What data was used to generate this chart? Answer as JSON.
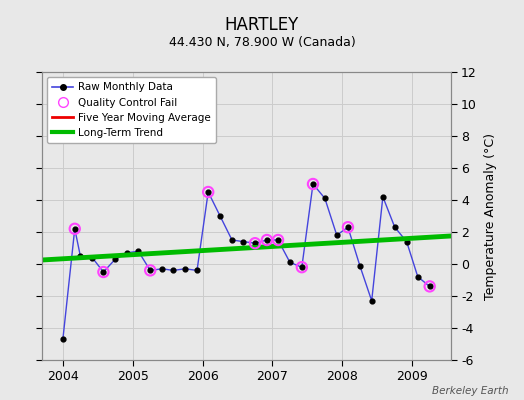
{
  "title": "HARTLEY",
  "subtitle": "44.430 N, 78.900 W (Canada)",
  "attribution": "Berkeley Earth",
  "ylabel": "Temperature Anomaly (°C)",
  "ylim": [
    -6,
    12
  ],
  "yticks": [
    -6,
    -4,
    -2,
    0,
    2,
    4,
    6,
    8,
    10,
    12
  ],
  "xlim": [
    2003.7,
    2009.55
  ],
  "xticks": [
    2004,
    2005,
    2006,
    2007,
    2008,
    2009
  ],
  "bg_color": "#e8e8e8",
  "raw_x": [
    2004.0,
    2004.17,
    2004.25,
    2004.42,
    2004.58,
    2004.75,
    2004.92,
    2005.08,
    2005.25,
    2005.42,
    2005.58,
    2005.75,
    2005.92,
    2006.08,
    2006.25,
    2006.42,
    2006.58,
    2006.75,
    2006.92,
    2007.08,
    2007.25,
    2007.42,
    2007.58,
    2007.75,
    2007.92,
    2008.08,
    2008.25,
    2008.42,
    2008.58,
    2008.75,
    2008.92,
    2009.08,
    2009.25
  ],
  "raw_y": [
    -4.7,
    2.2,
    0.5,
    0.4,
    -0.5,
    0.3,
    0.7,
    0.8,
    -0.4,
    -0.3,
    -0.4,
    -0.3,
    -0.4,
    4.5,
    3.0,
    1.5,
    1.4,
    1.3,
    1.5,
    1.5,
    0.1,
    -0.2,
    5.0,
    4.1,
    1.8,
    2.3,
    -0.1,
    -2.3,
    4.2,
    2.3,
    1.4,
    -0.8,
    -1.4
  ],
  "qc_fail_x": [
    2004.17,
    2004.58,
    2005.25,
    2006.08,
    2006.75,
    2006.92,
    2007.08,
    2007.42,
    2007.58,
    2008.08,
    2009.25
  ],
  "qc_fail_y": [
    2.2,
    -0.5,
    -0.4,
    4.5,
    1.3,
    1.5,
    1.5,
    -0.2,
    5.0,
    2.3,
    -1.4
  ],
  "trend_x": [
    2003.7,
    2009.55
  ],
  "trend_y": [
    0.25,
    1.75
  ],
  "raw_line_color": "#4444dd",
  "raw_dot_color": "#000000",
  "qc_color": "#ff44ff",
  "trend_color": "#00bb00",
  "five_yr_color": "#ee0000",
  "grid_color": "#cccccc"
}
